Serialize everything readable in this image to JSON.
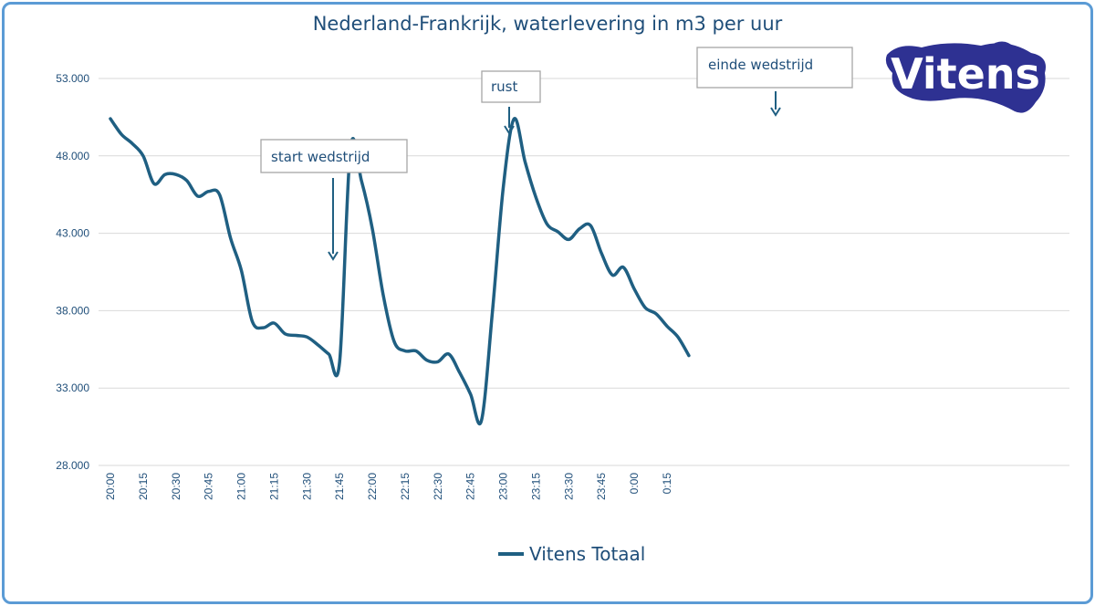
{
  "chart_data": {
    "type": "line",
    "title": "Nederland-Frankrijk, waterlevering in m3 per uur",
    "xlabel": "",
    "ylabel": "",
    "ylim": [
      28000,
      53000
    ],
    "y_ticks": [
      28000,
      33000,
      38000,
      43000,
      48000,
      53000
    ],
    "y_tick_labels": [
      "28.000",
      "33.000",
      "38.000",
      "43.000",
      "48.000",
      "53.000"
    ],
    "x_tick_labels": [
      "20:00",
      "20:15",
      "20:30",
      "20:45",
      "21:00",
      "21:15",
      "21:30",
      "21:45",
      "22:00",
      "22:15",
      "22:30",
      "22:45",
      "23:00",
      "23:15",
      "23:30",
      "23:45",
      "0:00",
      "0:15"
    ],
    "x_interval_minutes": 5,
    "grid": true,
    "legend_position": "bottom",
    "series": [
      {
        "name": "Vitens Totaal",
        "color": "#1f5f82",
        "values": [
          50400,
          49400,
          48800,
          48000,
          46200,
          46800,
          46800,
          46400,
          45400,
          45700,
          45500,
          42700,
          40600,
          37300,
          36900,
          37200,
          36500,
          36400,
          36300,
          35800,
          35200,
          34700,
          48500,
          46400,
          43300,
          39000,
          36000,
          35400,
          35400,
          34800,
          34700,
          35200,
          34000,
          32600,
          30900,
          37900,
          46000,
          50400,
          47600,
          45300,
          43600,
          43100,
          42600,
          43300,
          43500,
          41700,
          40300,
          40800,
          39400,
          38200,
          37800,
          37000,
          36300,
          35100
        ]
      }
    ],
    "annotations": [
      {
        "text": "start wedstrijd",
        "x_label": "21:00"
      },
      {
        "text": "rust",
        "x_label": "21:50"
      },
      {
        "text": "einde wedstrijd",
        "x_label": "23:05"
      }
    ]
  },
  "logo": {
    "text": "Vitens",
    "color": "#2e3192"
  }
}
